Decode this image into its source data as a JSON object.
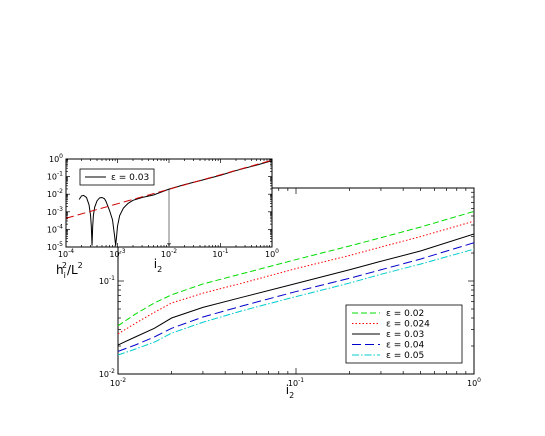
{
  "chart_data": [
    {
      "type": "line",
      "id": "main",
      "xscale": "log",
      "yscale": "log",
      "xlim": [
        0.01,
        1
      ],
      "ylim": [
        0.01,
        1
      ],
      "xlabel": {
        "base": "i",
        "sub": "2"
      },
      "ylabel": {
        "base": "h",
        "sub": "i",
        "sup": "2",
        "mid": "/L",
        "sup2": "2"
      },
      "xticks": [
        {
          "mant": "10",
          "exp": "-2",
          "value": 0.01
        },
        {
          "mant": "10",
          "exp": "-1",
          "value": 0.1
        },
        {
          "mant": "10",
          "exp": "0",
          "value": 1
        }
      ],
      "yticks": [
        {
          "mant": "10",
          "exp": "-2",
          "value": 0.01
        },
        {
          "mant": "10",
          "exp": "-1",
          "value": 0.1
        },
        {
          "mant": "10",
          "exp": "0",
          "value": 1
        }
      ],
      "legend_position": "bottom-right",
      "series": [
        {
          "name": "ε = 0.02",
          "color": "#00dd00",
          "dash": "6,3",
          "x": [
            0.01,
            0.0125,
            0.016,
            0.02,
            0.03,
            0.05,
            0.1,
            0.2,
            0.3,
            0.5,
            1.0
          ],
          "y": [
            0.033,
            0.044,
            0.058,
            0.071,
            0.093,
            0.12,
            0.17,
            0.238,
            0.292,
            0.38,
            0.56
          ]
        },
        {
          "name": "ε = 0.024",
          "color": "#ff0000",
          "dash": "1.5,2",
          "x": [
            0.01,
            0.0125,
            0.016,
            0.02,
            0.03,
            0.05,
            0.1,
            0.2,
            0.3,
            0.5,
            1.0
          ],
          "y": [
            0.027,
            0.035,
            0.046,
            0.058,
            0.074,
            0.095,
            0.136,
            0.188,
            0.232,
            0.3,
            0.44
          ]
        },
        {
          "name": "ε = 0.03",
          "color": "#000000",
          "dash": "",
          "x": [
            0.01,
            0.0125,
            0.016,
            0.02,
            0.03,
            0.05,
            0.1,
            0.2,
            0.3,
            0.5,
            1.0
          ],
          "y": [
            0.0205,
            0.025,
            0.031,
            0.04,
            0.052,
            0.067,
            0.094,
            0.132,
            0.163,
            0.21,
            0.32
          ]
        },
        {
          "name": "ε = 0.04",
          "color": "#0000cc",
          "dash": "9,4",
          "x": [
            0.01,
            0.0125,
            0.016,
            0.02,
            0.03,
            0.05,
            0.1,
            0.2,
            0.3,
            0.5,
            1.0
          ],
          "y": [
            0.0175,
            0.0205,
            0.025,
            0.031,
            0.041,
            0.054,
            0.077,
            0.107,
            0.132,
            0.172,
            0.258
          ]
        },
        {
          "name": "ε = 0.05",
          "color": "#00cccc",
          "dash": "7,2,1.5,2",
          "x": [
            0.01,
            0.0125,
            0.016,
            0.02,
            0.03,
            0.05,
            0.1,
            0.2,
            0.3,
            0.5,
            1.0
          ],
          "y": [
            0.016,
            0.0185,
            0.022,
            0.0275,
            0.036,
            0.048,
            0.068,
            0.095,
            0.118,
            0.152,
            0.22
          ]
        }
      ]
    },
    {
      "type": "line",
      "id": "inset",
      "xscale": "log",
      "yscale": "log",
      "xlim": [
        0.0001,
        1
      ],
      "ylim": [
        1e-05,
        1
      ],
      "xlabel": {
        "base": "i",
        "sub": "2"
      },
      "xticks": [
        {
          "mant": "10",
          "exp": "-4",
          "value": 0.0001
        },
        {
          "mant": "10",
          "exp": "-3",
          "value": 0.001
        },
        {
          "mant": "10",
          "exp": "-2",
          "value": 0.01
        },
        {
          "mant": "10",
          "exp": "-1",
          "value": 0.1
        },
        {
          "mant": "10",
          "exp": "0",
          "value": 1
        }
      ],
      "yticks": [
        {
          "mant": "10",
          "exp": "0",
          "value": 1
        },
        {
          "mant": "10",
          "exp": "-1",
          "value": 0.1
        },
        {
          "mant": "10",
          "exp": "-2",
          "value": 0.01
        },
        {
          "mant": "10",
          "exp": "-3",
          "value": 0.001
        },
        {
          "mant": "10",
          "exp": "-4",
          "value": 0.0001
        },
        {
          "mant": "10",
          "exp": "-5",
          "value": 1e-05
        }
      ],
      "marker_x": 0.01,
      "legend_position": "top-left",
      "series": [
        {
          "name": "ε = 0.03",
          "color": "#000000",
          "dash": "",
          "x": [
            0.00018,
            0.0002,
            0.00022,
            0.00025,
            0.00028,
            0.0003,
            0.00031,
            0.00032,
            0.00033,
            0.00034,
            0.00036,
            0.0004,
            0.00045,
            0.0005,
            0.00056,
            0.0006,
            0.0007,
            0.0008,
            0.00088,
            0.00092,
            0.00096,
            0.001,
            0.0011,
            0.0013,
            0.0016,
            0.002,
            0.003,
            0.005,
            0.01,
            0.02,
            0.05,
            0.1,
            0.2,
            0.5,
            1.0
          ],
          "y": [
            0.005,
            0.008,
            0.0085,
            0.0065,
            0.0025,
            0.0006,
            0.00015,
            1.2e-05,
            0.00015,
            0.0006,
            0.0018,
            0.0042,
            0.0062,
            0.0065,
            0.0055,
            0.0038,
            0.0012,
            0.00035,
            4e-05,
            1.2e-05,
            4e-05,
            0.00015,
            0.0006,
            0.0016,
            0.003,
            0.0045,
            0.0065,
            0.009,
            0.0195,
            0.035,
            0.07,
            0.12,
            0.22,
            0.45,
            0.8
          ]
        },
        {
          "name": "",
          "color": "#cc0000",
          "dash": "8,4",
          "x": [
            0.0001,
            1.0
          ],
          "y": [
            0.00043,
            0.85
          ]
        }
      ]
    }
  ]
}
